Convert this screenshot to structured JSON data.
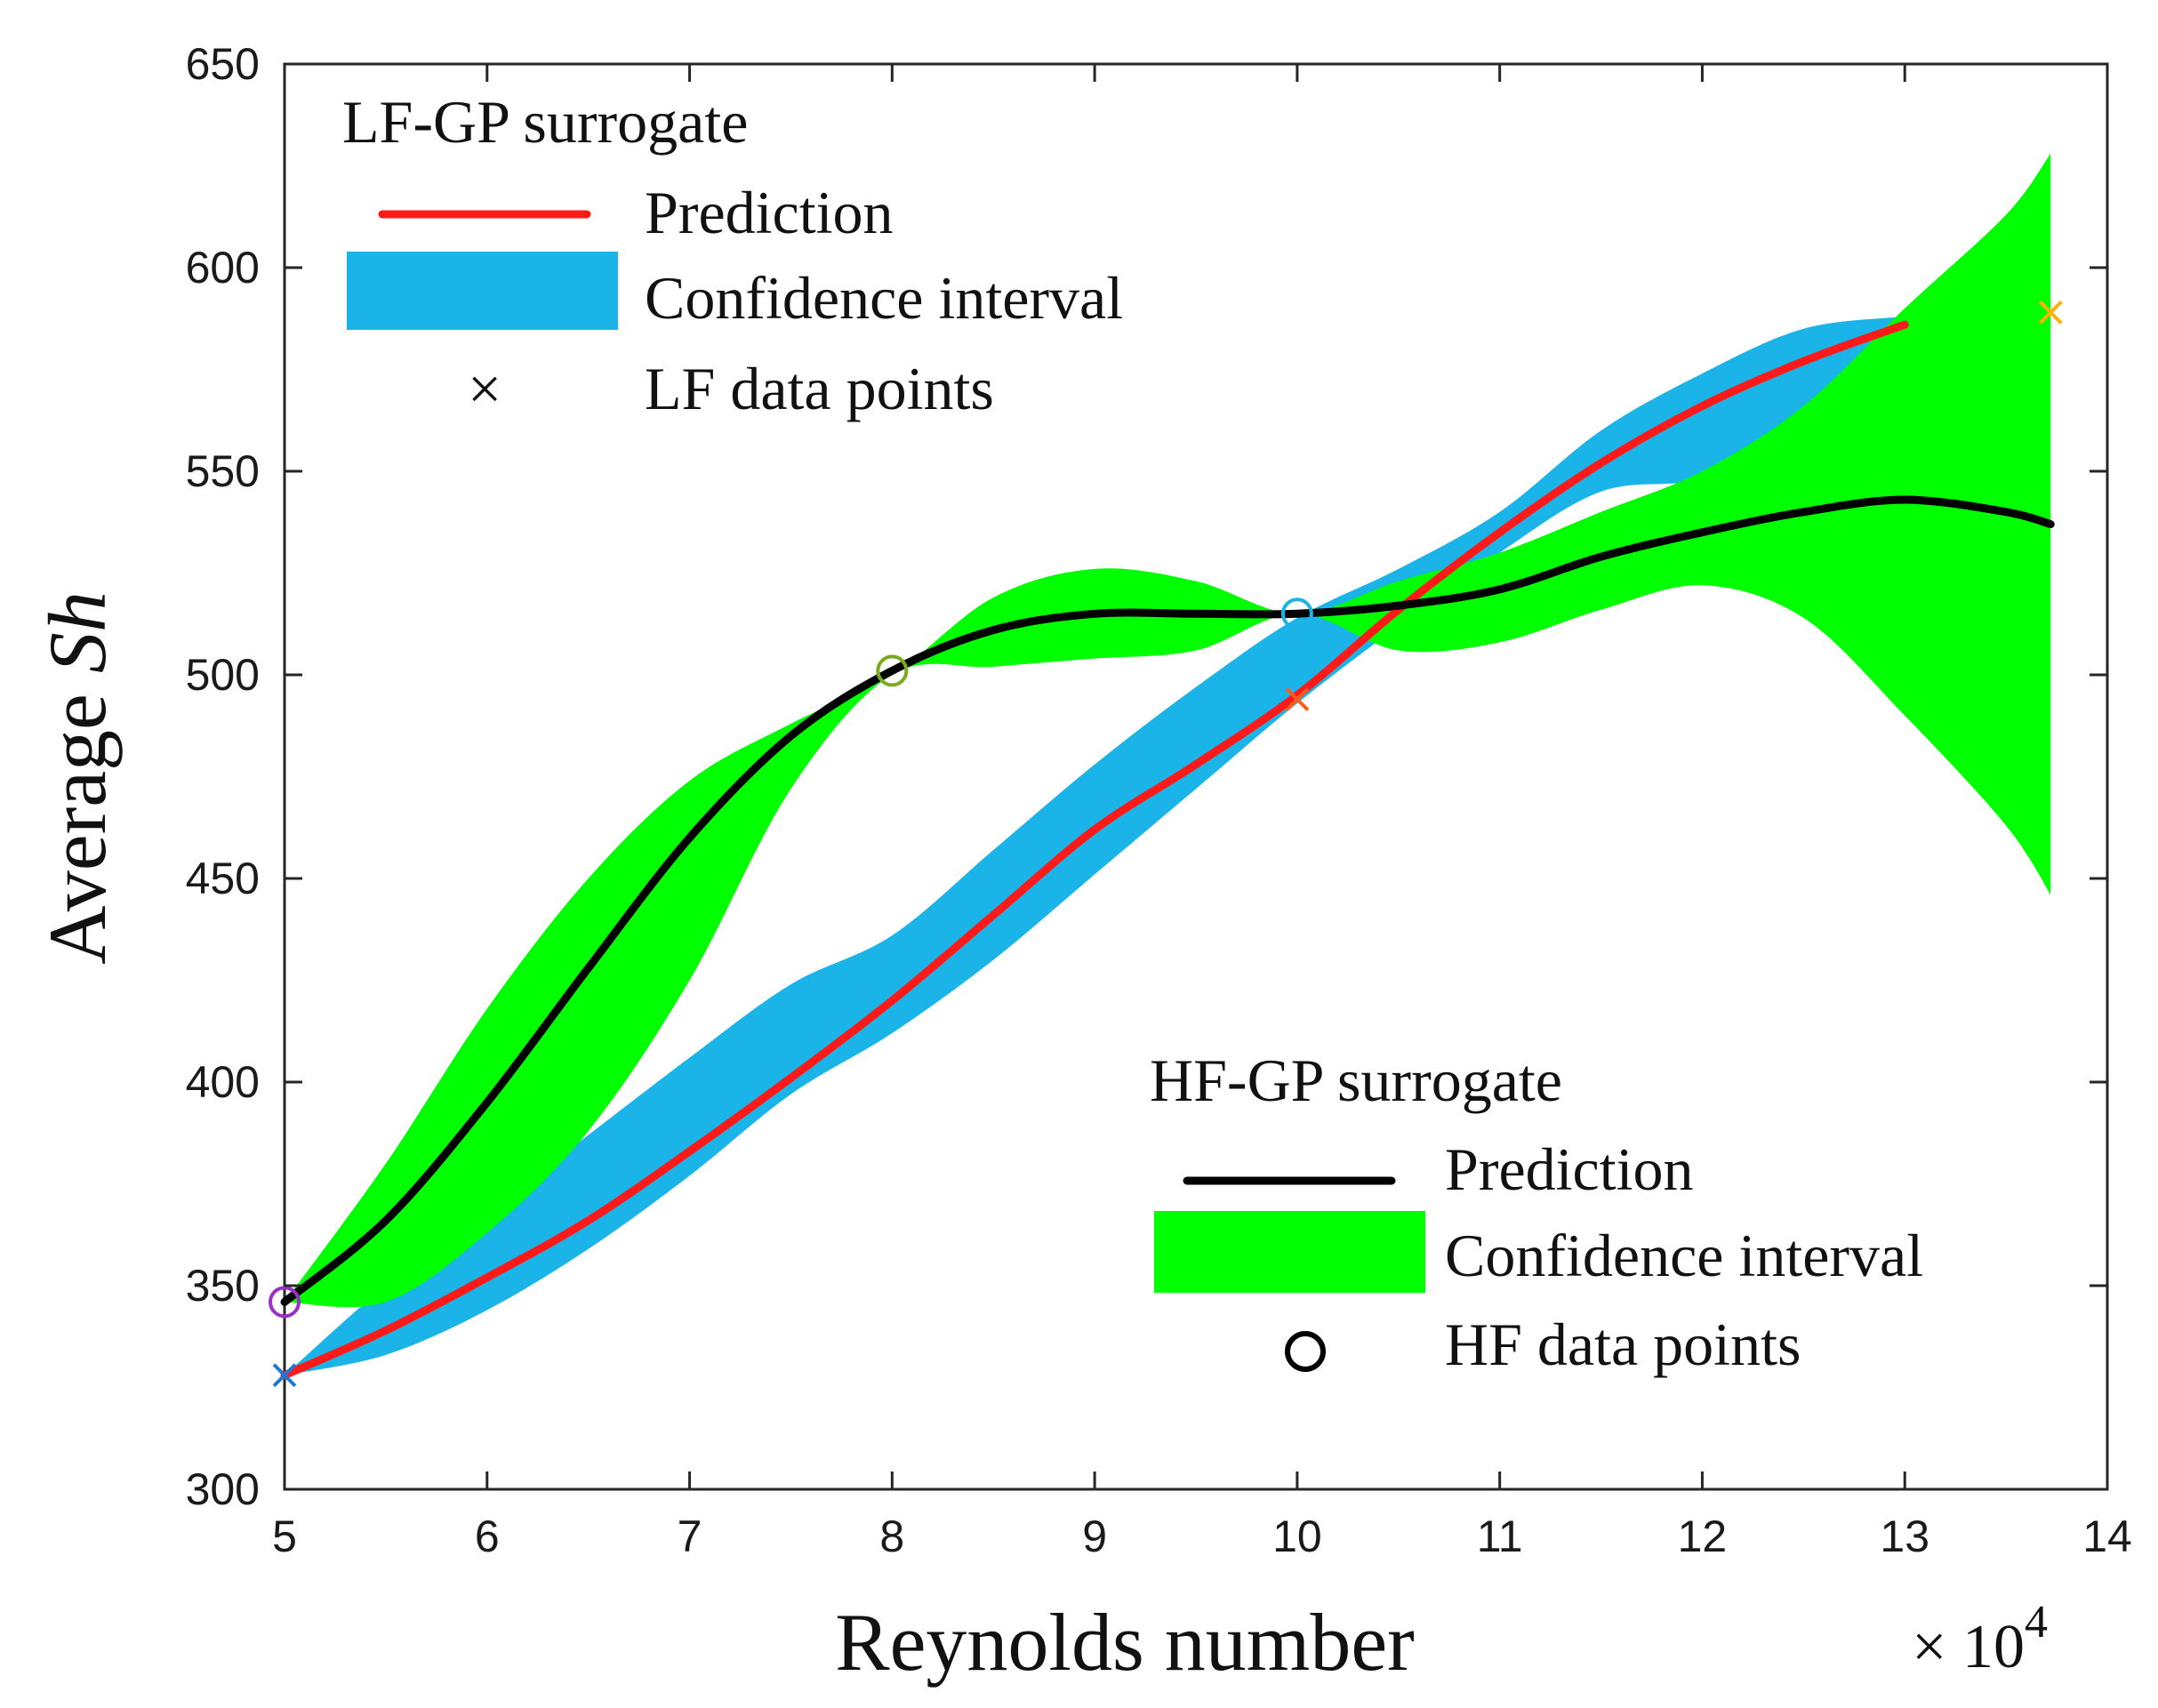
{
  "chart_data": {
    "type": "line",
    "xlabel": "Reynolds number",
    "ylabel_prefix": "Average ",
    "ylabel_var": "Sh",
    "x_multiplier_prefix": "× 10",
    "x_multiplier_exponent": "4",
    "xlim": [
      5,
      14
    ],
    "ylim": [
      300,
      650
    ],
    "xticks": [
      5,
      6,
      7,
      8,
      9,
      10,
      11,
      12,
      13,
      14
    ],
    "yticks": [
      300,
      350,
      400,
      450,
      500,
      550,
      600,
      650
    ],
    "colors": {
      "lf_prediction": "#ff1a1a",
      "lf_band": "#1ab4e8",
      "hf_prediction": "#000000",
      "hf_band": "#00ff00"
    },
    "series": [
      {
        "name": "LF-GP confidence interval",
        "kind": "band",
        "x": [
          5,
          5.5,
          6,
          6.5,
          7,
          7.5,
          8,
          8.5,
          9,
          9.5,
          10,
          10.5,
          11,
          11.5,
          12,
          12.5,
          13
        ],
        "lower": [
          328,
          333,
          344,
          359,
          377,
          397,
          412,
          430,
          451,
          472,
          493,
          512,
          530,
          545,
          548,
          558,
          578
        ],
        "upper": [
          328,
          350,
          368,
          387,
          406,
          424,
          436,
          457,
          478,
          497,
          514,
          526,
          540,
          560,
          574,
          585,
          588
        ]
      },
      {
        "name": "HF-GP confidence interval",
        "kind": "band",
        "x": [
          5,
          5.5,
          6,
          6.5,
          7,
          7.5,
          8,
          8.5,
          9,
          9.5,
          10,
          10.5,
          11,
          11.5,
          12,
          12.5,
          13,
          13.5,
          13.72
        ],
        "lower": [
          346,
          346,
          363,
          388,
          425,
          472,
          500,
          502,
          504,
          506,
          515,
          506,
          508,
          516,
          522,
          514,
          490,
          463,
          446
        ],
        "upper": [
          346,
          380,
          418,
          450,
          474,
          488,
          500,
          519,
          526,
          523,
          515,
          523,
          530,
          540,
          550,
          566,
          590,
          613,
          628
        ]
      },
      {
        "name": "LF-GP prediction",
        "kind": "line",
        "x": [
          5,
          5.5,
          6,
          6.5,
          7,
          7.5,
          8,
          8.5,
          9,
          9.5,
          10,
          10.5,
          11,
          11.5,
          12,
          12.5,
          13
        ],
        "values": [
          328,
          339,
          352,
          366,
          383,
          401,
          420,
          441,
          462,
          478,
          495,
          516,
          535,
          552,
          566,
          577,
          586
        ]
      },
      {
        "name": "HF-GP prediction",
        "kind": "line",
        "x": [
          5,
          5.5,
          6,
          6.5,
          7,
          7.5,
          8,
          8.5,
          9,
          9.5,
          10,
          10.5,
          11,
          11.5,
          12,
          12.5,
          13,
          13.5,
          13.72
        ],
        "values": [
          346,
          366,
          395,
          428,
          460,
          485,
          501,
          511,
          515,
          515,
          515,
          517,
          521,
          529,
          535,
          540,
          543,
          540,
          537
        ]
      }
    ],
    "lf_points": [
      {
        "x": 5,
        "y": 328,
        "color": "#1f77d4"
      },
      {
        "x": 10,
        "y": 494,
        "color": "#ff5a1a"
      },
      {
        "x": 13.72,
        "y": 589,
        "color": "#ffb000"
      }
    ],
    "hf_points": [
      {
        "x": 5,
        "y": 346,
        "color": "#9b30c8"
      },
      {
        "x": 8,
        "y": 501,
        "color": "#7aab1e"
      },
      {
        "x": 10,
        "y": 515,
        "color": "#1ab4e8"
      }
    ],
    "legends": {
      "lf": {
        "position": "top-left",
        "title": "LF-GP surrogate",
        "prediction": "Prediction",
        "confidence": "Confidence interval",
        "points": "LF data points",
        "point_symbol": "×"
      },
      "hf": {
        "position": "bottom-right",
        "title": "HF-GP surrogate",
        "prediction": "Prediction",
        "confidence": "Confidence interval",
        "points": "HF data points"
      }
    }
  }
}
